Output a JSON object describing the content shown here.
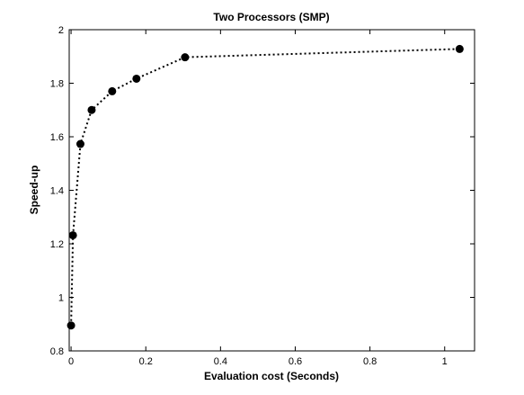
{
  "chart_data": {
    "type": "line",
    "title": "Two Processors (SMP)",
    "xlabel": "Evaluation cost (Seconds)",
    "ylabel": "Speed-up",
    "xlim": [
      -0.005,
      1.08
    ],
    "ylim": [
      0.8,
      2.0
    ],
    "grid": false,
    "line_style": "dotted",
    "marker": "filled-circle",
    "x_ticks": [
      0,
      0.2,
      0.4,
      0.6,
      0.8,
      1
    ],
    "x_tick_labels": [
      "0",
      "0.2",
      "0.4",
      "0.6",
      "0.8",
      "1"
    ],
    "y_ticks": [
      0.8,
      1.0,
      1.2,
      1.4,
      1.6,
      1.8,
      2.0
    ],
    "y_tick_labels": [
      "0.8",
      "1",
      "1.2",
      "1.4",
      "1.6",
      "1.8",
      "2"
    ],
    "series": [
      {
        "x": [
          0.0,
          0.005,
          0.025,
          0.055,
          0.11,
          0.175,
          0.305,
          1.04
        ],
        "y": [
          0.895,
          1.232,
          1.573,
          1.7,
          1.77,
          1.817,
          1.897,
          1.928
        ]
      }
    ]
  }
}
